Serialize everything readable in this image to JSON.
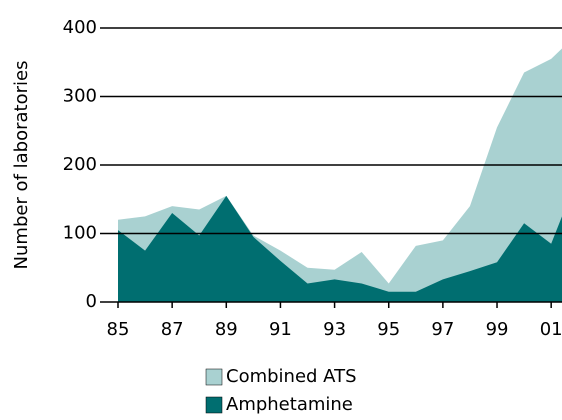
{
  "chart_data": {
    "type": "area",
    "y_label": "Number of laboratories",
    "x": [
      1985,
      1986,
      1987,
      1988,
      1989,
      1990,
      1991,
      1992,
      1993,
      1994,
      1995,
      1996,
      1997,
      1998,
      1999,
      2000,
      2001,
      2001.4
    ],
    "series": [
      {
        "name": "Combined ATS",
        "color": "#a9d1d1",
        "values": [
          120,
          125,
          140,
          135,
          155,
          97,
          75,
          50,
          47,
          73,
          27,
          82,
          90,
          140,
          255,
          335,
          355,
          370
        ]
      },
      {
        "name": "Amphetamine",
        "color": "#006e70",
        "values": [
          105,
          75,
          130,
          97,
          155,
          95,
          60,
          27,
          33,
          27,
          15,
          15,
          33,
          45,
          58,
          115,
          85,
          125
        ]
      }
    ],
    "xlim": [
      1985,
      2001.4
    ],
    "xticks": [
      {
        "value": 1985,
        "label": "85"
      },
      {
        "value": 1987,
        "label": "87"
      },
      {
        "value": 1989,
        "label": "89"
      },
      {
        "value": 1991,
        "label": "91"
      },
      {
        "value": 1993,
        "label": "93"
      },
      {
        "value": 1995,
        "label": "95"
      },
      {
        "value": 1997,
        "label": "97"
      },
      {
        "value": 1999,
        "label": "99"
      },
      {
        "value": 2001,
        "label": "01"
      }
    ],
    "ylim": [
      0,
      400
    ],
    "yticks": [
      0,
      100,
      200,
      300,
      400
    ],
    "grid": true
  }
}
